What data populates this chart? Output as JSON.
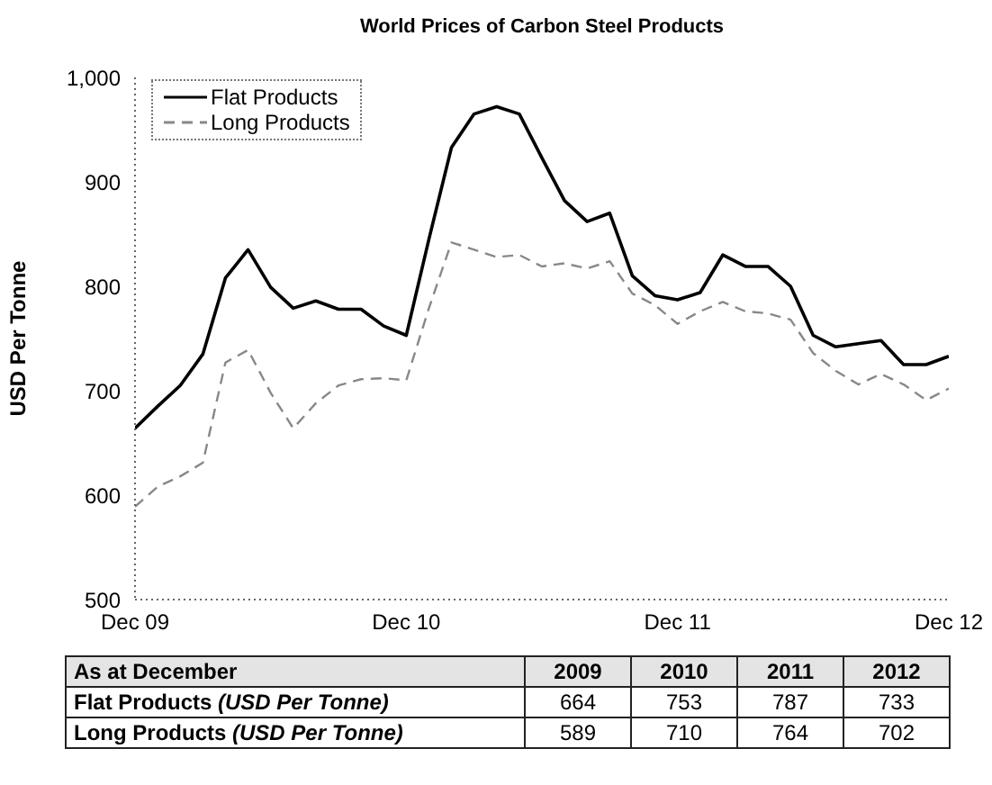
{
  "chart_data": {
    "type": "line",
    "title": "World Prices of Carbon Steel Products",
    "ylabel": "USD Per Tonne",
    "x": [
      "2009-12",
      "2010-01",
      "2010-02",
      "2010-03",
      "2010-04",
      "2010-05",
      "2010-06",
      "2010-07",
      "2010-08",
      "2010-09",
      "2010-10",
      "2010-11",
      "2010-12",
      "2011-01",
      "2011-02",
      "2011-03",
      "2011-04",
      "2011-05",
      "2011-06",
      "2011-07",
      "2011-08",
      "2011-09",
      "2011-10",
      "2011-11",
      "2011-12",
      "2012-01",
      "2012-02",
      "2012-03",
      "2012-04",
      "2012-05",
      "2012-06",
      "2012-07",
      "2012-08",
      "2012-09",
      "2012-10",
      "2012-11",
      "2012-12"
    ],
    "series": [
      {
        "name": "Flat Products",
        "color": "#000000",
        "line_style": "solid",
        "values": [
          664,
          685,
          705,
          735,
          808,
          835,
          799,
          779,
          786,
          778,
          778,
          762,
          753,
          845,
          933,
          965,
          972,
          965,
          923,
          882,
          862,
          870,
          810,
          791,
          787,
          794,
          830,
          819,
          819,
          800,
          753,
          742,
          745,
          748,
          725,
          725,
          733
        ]
      },
      {
        "name": "Long Products",
        "color": "#888888",
        "line_style": "dashed",
        "values": [
          589,
          608,
          618,
          631,
          727,
          739,
          698,
          664,
          688,
          705,
          711,
          712,
          710,
          779,
          842,
          835,
          828,
          830,
          819,
          822,
          817,
          824,
          793,
          782,
          764,
          776,
          785,
          776,
          774,
          768,
          736,
          719,
          706,
          716,
          706,
          691,
          702
        ]
      }
    ],
    "xlim": [
      "2009-12",
      "2012-12"
    ],
    "xticks": [
      {
        "value": "2009-12",
        "label": "Dec 09"
      },
      {
        "value": "2010-12",
        "label": "Dec 10"
      },
      {
        "value": "2011-12",
        "label": "Dec 11"
      },
      {
        "value": "2012-12",
        "label": "Dec 12"
      }
    ],
    "ylim": [
      500,
      1000
    ],
    "yticks": [
      {
        "value": 500,
        "label": "500"
      },
      {
        "value": 600,
        "label": "600"
      },
      {
        "value": 700,
        "label": "700"
      },
      {
        "value": 800,
        "label": "800"
      },
      {
        "value": 900,
        "label": "900"
      },
      {
        "value": 1000,
        "label": "1,000"
      }
    ],
    "legend": "top left",
    "annotations": [
      "As at December",
      "2009",
      "2010",
      "2011",
      "2012",
      "Flat Products (USD Per Tonne)",
      "664",
      "753",
      "787",
      "733",
      "Long Products (USD Per Tonne)",
      "589",
      "710",
      "764",
      "702"
    ]
  }
}
